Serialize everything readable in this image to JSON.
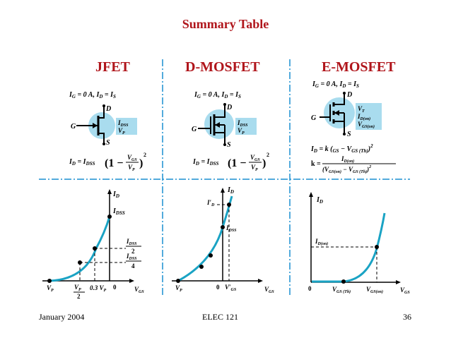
{
  "slide": {
    "title": "Summary Table",
    "columns": [
      {
        "heading": "JFET",
        "cond_prefix": "I",
        "cond_g": "G",
        "cond_mid": " = 0 A, I",
        "cond_d": "D",
        "cond_eq": " = I",
        "cond_s": "S",
        "pins": {
          "g": "G",
          "d": "D",
          "s": "S"
        },
        "box_line1": "I",
        "box_line1_sub": "DSS",
        "box_line2": "V",
        "box_line2_sub": "P",
        "eq_lhs": "I",
        "eq_lhs_sub": "D",
        "eq_mid": " = I",
        "eq_mid_sub": "DSS",
        "eq_frac_num": "V",
        "eq_frac_num_sub": "GS",
        "eq_frac_den": "V",
        "eq_frac_den_sub": "P",
        "eq_exp": "2",
        "graph": {
          "y_axis": "I",
          "y_axis_sub": "D",
          "x_axis": "V",
          "x_axis_sub": "GS",
          "idss": "I",
          "idss_sub": "DSS",
          "half_num": "I",
          "half_num_sub": "DSS",
          "half_den": "2",
          "quarter_num": "I",
          "quarter_num_sub": "DSS",
          "quarter_den": "4",
          "vp": "V",
          "vp_sub": "P",
          "vp2_num": "V",
          "vp2_num_sub": "P",
          "vp2_den": "2",
          "vp03": "0.3 V",
          "vp03_sub": "P",
          "zero": "0"
        }
      },
      {
        "heading": "D-MOSFET",
        "cond_prefix": "I",
        "cond_g": "G",
        "cond_mid": " = 0 A, I",
        "cond_d": "D",
        "cond_eq": " = I",
        "cond_s": "S",
        "pins": {
          "g": "G",
          "d": "D",
          "s": "S"
        },
        "box_line1": "I",
        "box_line1_sub": "DSS",
        "box_line2": "V",
        "box_line2_sub": "P",
        "eq_lhs": "I",
        "eq_lhs_sub": "D",
        "eq_mid": " = I",
        "eq_mid_sub": "DSS",
        "eq_frac_num": "V",
        "eq_frac_num_sub": "GS",
        "eq_frac_den": "V",
        "eq_frac_den_sub": "P",
        "eq_exp": "2",
        "graph": {
          "y_axis": "I",
          "y_axis_sub": "D",
          "x_axis": "V",
          "x_axis_sub": "GS",
          "idp": "I′",
          "idp_sub": "D",
          "idss": "I",
          "idss_sub": "DSS",
          "vp": "V",
          "vp_sub": "P",
          "zero": "0",
          "vgsp": "V′",
          "vgsp_sub": "GS"
        }
      },
      {
        "heading": "E-MOSFET",
        "cond_prefix": "I",
        "cond_g": "G",
        "cond_mid": " = 0 A, I",
        "cond_d": "D",
        "cond_eq": " = I",
        "cond_s": "S",
        "pins": {
          "g": "G",
          "d": "D",
          "s": "S"
        },
        "box_line1": "V",
        "box_line1_sub": "T",
        "box_line2": "I",
        "box_line2_sub": "D(on)",
        "box_line3": "V",
        "box_line3_sub": "GS(on)",
        "eq1_lhs": "I",
        "eq1_lhs_sub": "D",
        "eq1_mid": " = k (",
        "eq1_a": "GS",
        "eq1_b": " − V",
        "eq1_b_sub": "GS (Th)",
        "eq1_end": ")",
        "eq1_exp": "2",
        "eq2_lhs": "k = ",
        "eq2_num": "I",
        "eq2_num_sub": "D(on)",
        "eq2_den": "(V",
        "eq2_den_sub": "GS(on)",
        "eq2_den_mid": " − V",
        "eq2_den_sub2": "GS (Th)",
        "eq2_den_end": ")",
        "eq2_exp": "2",
        "graph": {
          "y_axis": "I",
          "y_axis_sub": "D",
          "x_axis": "V",
          "x_axis_sub": "GS",
          "idon": "I",
          "idon_sub": "D(on)",
          "zero": "0",
          "vth": "V",
          "vth_sub": "GS (Th)",
          "von": "V",
          "von_sub": "GS(on)"
        }
      }
    ]
  },
  "footer": {
    "left": "January 2004",
    "center": "ELEC 121",
    "right": "36"
  },
  "colors": {
    "title": "#b0151b",
    "curve": "#1aa3c4",
    "grid": "#1a8fd0",
    "highlight": "#a9dcee"
  }
}
